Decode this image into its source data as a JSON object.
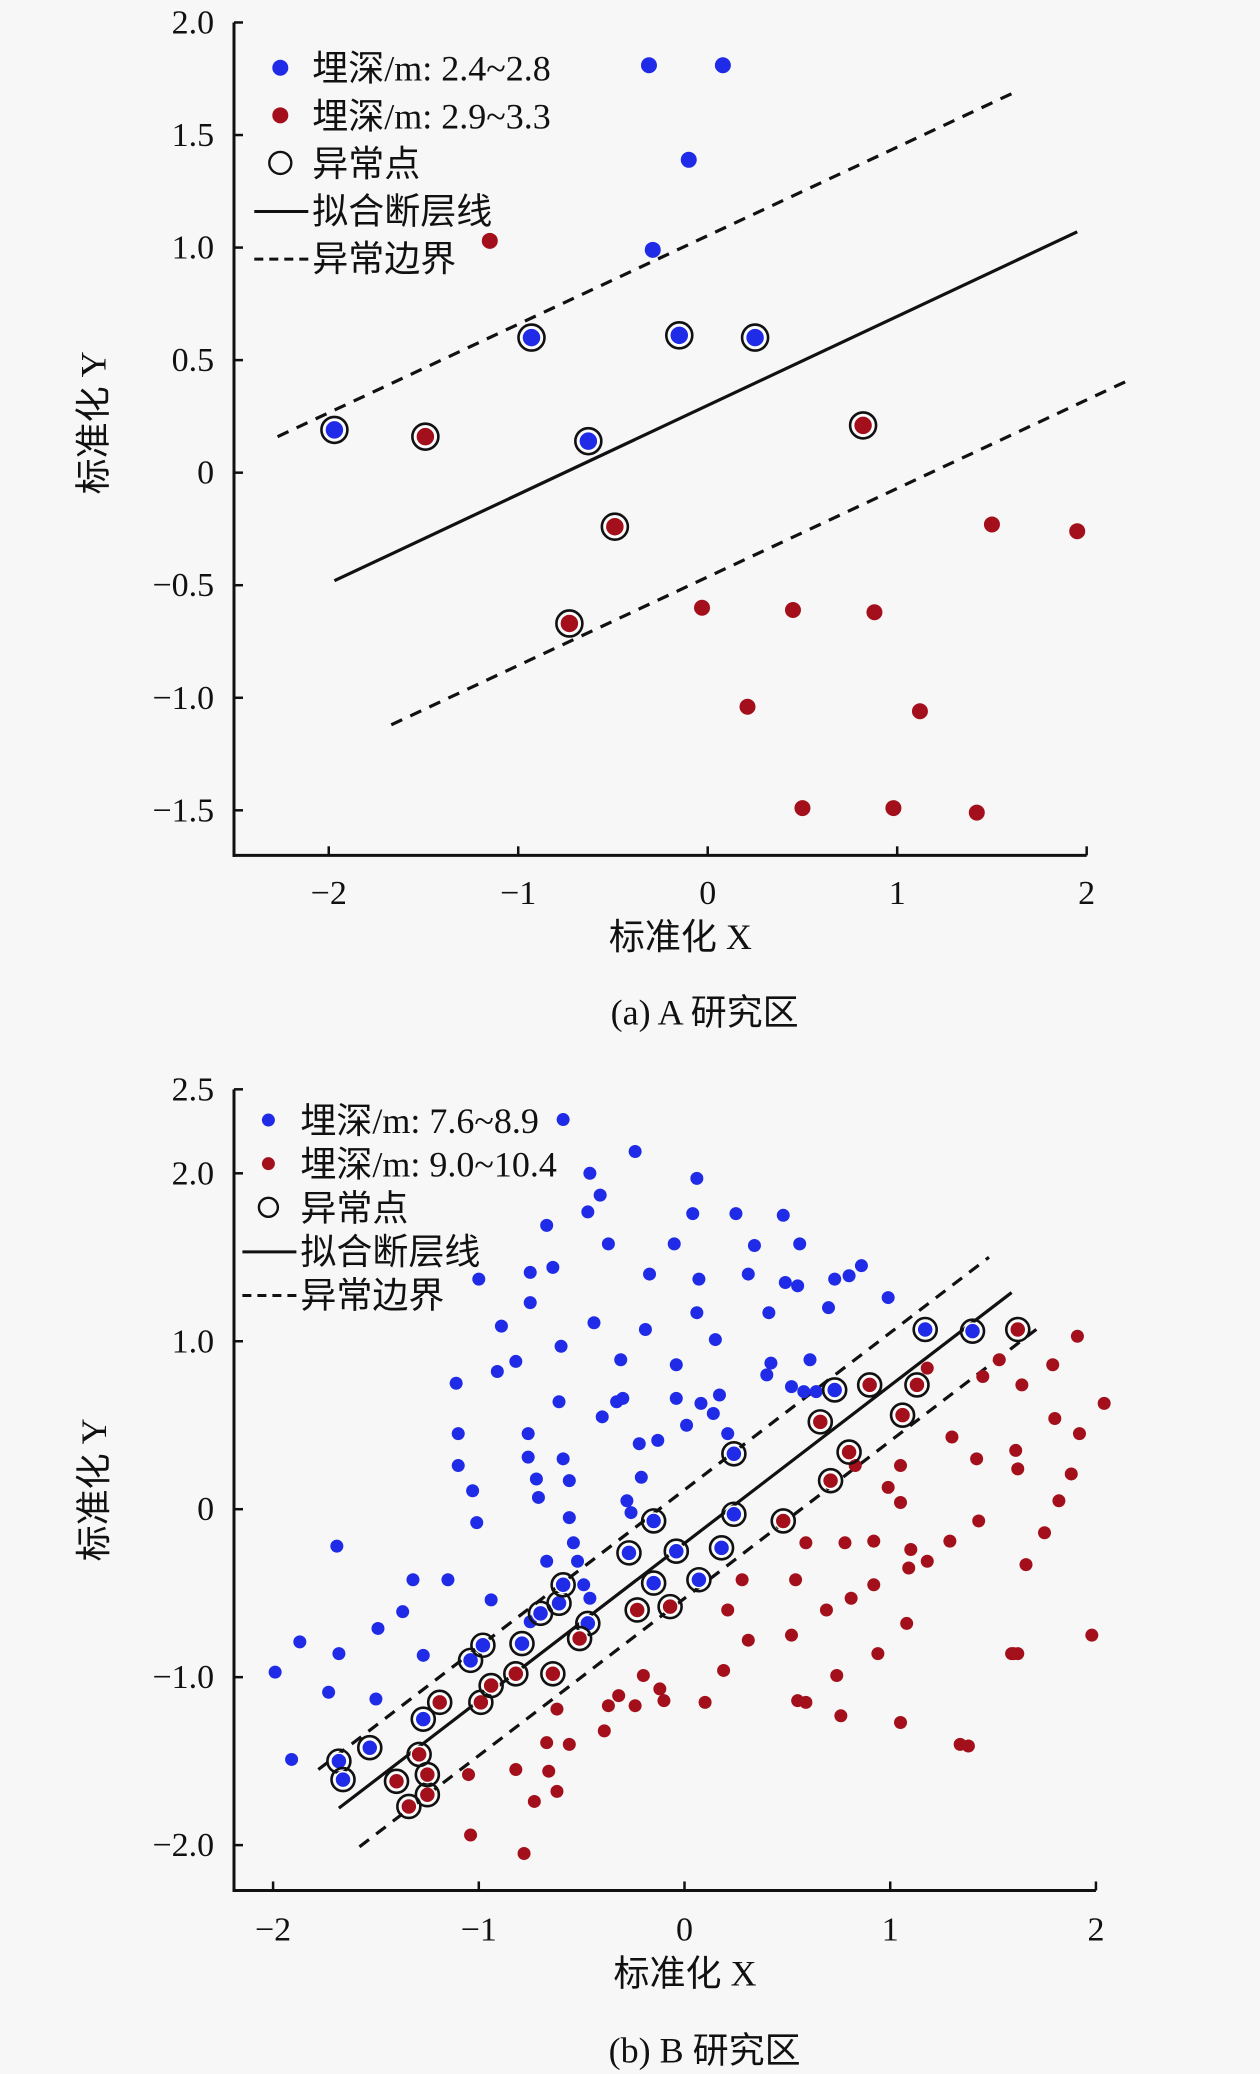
{
  "colors": {
    "blue": "#1f2be6",
    "red": "#a3101c",
    "line": "#111111",
    "background": "#f7f7f7"
  },
  "chart_data": [
    {
      "type": "scatter",
      "caption": "(a) A 研究区",
      "xlabel": "标准化 X",
      "ylabel": "标准化 Y",
      "xlim": [
        -2.5,
        2.0
      ],
      "ylim": [
        -1.7,
        2.0
      ],
      "xticks": [
        {
          "v": -2,
          "label": "−2"
        },
        {
          "v": -1,
          "label": "−1"
        },
        {
          "v": 0,
          "label": "0"
        },
        {
          "v": 1,
          "label": "1"
        },
        {
          "v": 2,
          "label": "2"
        }
      ],
      "yticks": [
        {
          "v": 2.0,
          "label": "2.0"
        },
        {
          "v": 1.5,
          "label": "1.5"
        },
        {
          "v": 1.0,
          "label": "1.0"
        },
        {
          "v": 0.5,
          "label": "0.5"
        },
        {
          "v": 0,
          "label": "0"
        },
        {
          "v": -0.5,
          "label": "−0.5"
        },
        {
          "v": -1.0,
          "label": "−1.0"
        },
        {
          "v": -1.5,
          "label": "−1.5"
        }
      ],
      "legend": {
        "position": "top-left",
        "entries": [
          "埋深/m: 2.4~2.8",
          "埋深/m: 2.9~3.3",
          "异常点",
          "拟合断层线",
          "异常边界"
        ]
      },
      "series": [
        {
          "name": "埋深/m: 2.4~2.8",
          "color": "blue",
          "points": [
            [
              -0.31,
              1.81
            ],
            [
              0.08,
              1.81
            ],
            [
              -0.1,
              1.39
            ],
            [
              -0.29,
              0.99
            ]
          ],
          "anomalies": [
            [
              -1.97,
              0.19
            ],
            [
              -0.93,
              0.6
            ],
            [
              -0.63,
              0.14
            ],
            [
              -0.15,
              0.61
            ],
            [
              0.25,
              0.6
            ]
          ]
        },
        {
          "name": "埋深/m: 2.9~3.3",
          "color": "red",
          "points": [
            [
              -1.15,
              1.03
            ],
            [
              1.5,
              -0.23
            ],
            [
              1.95,
              -0.26
            ],
            [
              -0.03,
              -0.6
            ],
            [
              0.45,
              -0.61
            ],
            [
              0.88,
              -0.62
            ],
            [
              0.21,
              -1.04
            ],
            [
              1.12,
              -1.06
            ],
            [
              0.5,
              -1.49
            ],
            [
              0.98,
              -1.49
            ],
            [
              1.42,
              -1.51
            ]
          ],
          "anomalies": [
            [
              -1.49,
              0.16
            ],
            [
              -0.49,
              -0.24
            ],
            [
              -0.73,
              -0.67
            ],
            [
              0.82,
              0.21
            ]
          ]
        }
      ],
      "fit_line": [
        [
          -1.97,
          -0.48
        ],
        [
          1.95,
          1.07
        ]
      ],
      "boundary_upper": [
        [
          -2.27,
          0.16
        ],
        [
          1.62,
          1.69
        ]
      ],
      "boundary_lower": [
        [
          -1.67,
          -1.12
        ],
        [
          2.22,
          0.41
        ]
      ]
    },
    {
      "type": "scatter",
      "caption": "(b) B 研究区",
      "xlabel": "标准化 X",
      "ylabel": "标准化 Y",
      "xlim": [
        -2.19,
        2.0
      ],
      "ylim": [
        -2.27,
        2.5
      ],
      "xticks": [
        {
          "v": -2,
          "label": "−2"
        },
        {
          "v": -1,
          "label": "−1"
        },
        {
          "v": 0,
          "label": "0"
        },
        {
          "v": 1,
          "label": "1"
        },
        {
          "v": 2,
          "label": "2"
        }
      ],
      "yticks": [
        {
          "v": 2.5,
          "label": "2.5"
        },
        {
          "v": 2.0,
          "label": "2.0"
        },
        {
          "v": 1.0,
          "label": "1.0"
        },
        {
          "v": 0,
          "label": "0"
        },
        {
          "v": -1.0,
          "label": "−1.0"
        },
        {
          "v": -2.0,
          "label": "−2.0"
        }
      ],
      "legend": {
        "position": "top-left",
        "entries": [
          "埋深/m: 7.6~8.9",
          "埋深/m: 9.0~10.4",
          "异常点",
          "拟合断层线",
          "异常边界"
        ]
      },
      "series": [
        {
          "name": "埋深/m: 7.6~8.9",
          "color": "blue",
          "points": [
            [
              -0.59,
              2.32
            ],
            [
              -0.24,
              2.13
            ],
            [
              -0.46,
              2.0
            ],
            [
              0.06,
              1.97
            ],
            [
              -0.67,
              1.69
            ],
            [
              -0.47,
              1.77
            ],
            [
              -1.69,
              -0.22
            ],
            [
              -1.99,
              -0.97
            ],
            [
              -1.91,
              -1.49
            ],
            [
              -1.87,
              -0.79
            ],
            [
              -1.73,
              -1.09
            ],
            [
              -1.68,
              -0.86
            ],
            [
              -1.49,
              -0.71
            ],
            [
              -1.5,
              -1.13
            ],
            [
              -1.37,
              -0.61
            ],
            [
              -1.32,
              -0.42
            ],
            [
              -1.27,
              -0.87
            ],
            [
              -1.15,
              -0.42
            ],
            [
              -1.11,
              0.75
            ],
            [
              -1.1,
              0.45
            ],
            [
              -1.1,
              0.26
            ],
            [
              -1.03,
              0.11
            ],
            [
              -1.01,
              -0.08
            ],
            [
              -0.94,
              -0.54
            ],
            [
              -1.0,
              1.37
            ],
            [
              -0.91,
              0.82
            ],
            [
              -0.89,
              1.09
            ],
            [
              -0.82,
              0.88
            ],
            [
              -0.76,
              0.45
            ],
            [
              -0.75,
              -0.67
            ],
            [
              -0.76,
              0.31
            ],
            [
              -0.72,
              0.18
            ],
            [
              -0.71,
              0.07
            ],
            [
              -0.75,
              1.41
            ],
            [
              -0.75,
              1.23
            ],
            [
              -0.64,
              1.44
            ],
            [
              -0.61,
              0.64
            ],
            [
              -0.6,
              0.97
            ],
            [
              -0.67,
              -0.31
            ],
            [
              -0.59,
              0.3
            ],
            [
              -0.56,
              0.17
            ],
            [
              -0.56,
              -0.05
            ],
            [
              -0.54,
              -0.2
            ],
            [
              -0.52,
              -0.31
            ],
            [
              -0.49,
              -0.45
            ],
            [
              -0.46,
              -0.53
            ],
            [
              -0.44,
              1.11
            ],
            [
              -0.4,
              0.55
            ],
            [
              -0.37,
              1.58
            ],
            [
              -0.33,
              0.64
            ],
            [
              -0.31,
              0.89
            ],
            [
              -0.3,
              0.66
            ],
            [
              -0.26,
              -0.02
            ],
            [
              -0.22,
              0.39
            ],
            [
              -0.21,
              0.19
            ],
            [
              -0.19,
              1.07
            ],
            [
              -0.17,
              1.4
            ],
            [
              -0.13,
              0.41
            ],
            [
              -0.05,
              1.58
            ],
            [
              -0.04,
              0.86
            ],
            [
              -0.04,
              0.66
            ],
            [
              0.01,
              0.5
            ],
            [
              0.04,
              1.76
            ],
            [
              0.06,
              1.17
            ],
            [
              0.07,
              1.37
            ],
            [
              0.08,
              0.63
            ],
            [
              0.15,
              1.01
            ],
            [
              0.17,
              0.68
            ],
            [
              0.25,
              1.76
            ],
            [
              0.31,
              1.4
            ],
            [
              0.34,
              1.57
            ],
            [
              0.4,
              0.8
            ],
            [
              0.41,
              1.17
            ],
            [
              0.42,
              0.87
            ],
            [
              0.48,
              1.75
            ],
            [
              0.49,
              1.35
            ],
            [
              0.55,
              1.33
            ],
            [
              0.56,
              1.58
            ],
            [
              0.61,
              0.89
            ],
            [
              0.64,
              0.7
            ],
            [
              0.7,
              1.2
            ],
            [
              0.73,
              1.37
            ],
            [
              0.8,
              1.39
            ],
            [
              0.86,
              1.45
            ],
            [
              0.99,
              1.26
            ],
            [
              0.58,
              0.7
            ],
            [
              0.14,
              0.57
            ],
            [
              -0.41,
              1.87
            ],
            [
              -0.28,
              0.05
            ],
            [
              0.21,
              0.45
            ],
            [
              0.52,
              0.73
            ]
          ],
          "anomalies": [
            [
              -1.68,
              -1.5
            ],
            [
              -1.66,
              -1.61
            ],
            [
              -1.53,
              -1.42
            ],
            [
              -1.27,
              -1.25
            ],
            [
              -1.04,
              -0.9
            ],
            [
              -0.98,
              -0.81
            ],
            [
              -0.79,
              -0.8
            ],
            [
              -0.7,
              -0.62
            ],
            [
              -0.61,
              -0.56
            ],
            [
              -0.59,
              -0.45
            ],
            [
              -0.47,
              -0.68
            ],
            [
              -0.27,
              -0.26
            ],
            [
              -0.15,
              -0.07
            ],
            [
              -0.15,
              -0.44
            ],
            [
              -0.04,
              -0.25
            ],
            [
              0.07,
              -0.42
            ],
            [
              0.18,
              -0.23
            ],
            [
              0.24,
              -0.03
            ],
            [
              0.24,
              0.33
            ],
            [
              0.73,
              0.71
            ],
            [
              1.17,
              1.07
            ],
            [
              1.4,
              1.06
            ]
          ]
        },
        {
          "name": "埋深/m: 9.0~10.4",
          "color": "red",
          "points": [
            [
              -1.05,
              -1.58
            ],
            [
              -1.04,
              -1.94
            ],
            [
              -0.78,
              -2.05
            ],
            [
              -0.73,
              -1.74
            ],
            [
              -0.82,
              -1.55
            ],
            [
              -0.67,
              -1.39
            ],
            [
              -0.66,
              -1.56
            ],
            [
              -0.62,
              -1.68
            ],
            [
              -0.62,
              -1.19
            ],
            [
              -0.56,
              -1.4
            ],
            [
              -0.39,
              -1.32
            ],
            [
              -0.37,
              -1.17
            ],
            [
              -0.32,
              -1.11
            ],
            [
              -0.24,
              -1.17
            ],
            [
              -0.2,
              -0.99
            ],
            [
              -0.12,
              -1.07
            ],
            [
              -0.1,
              -1.14
            ],
            [
              0.1,
              -1.15
            ],
            [
              0.19,
              -0.96
            ],
            [
              0.21,
              -0.6
            ],
            [
              0.28,
              -0.42
            ],
            [
              0.31,
              -0.78
            ],
            [
              0.52,
              -0.75
            ],
            [
              0.54,
              -0.42
            ],
            [
              0.59,
              -0.2
            ],
            [
              0.69,
              -0.6
            ],
            [
              0.59,
              -1.15
            ],
            [
              0.55,
              -1.14
            ],
            [
              0.74,
              -0.99
            ],
            [
              0.76,
              -1.23
            ],
            [
              0.78,
              -0.2
            ],
            [
              0.81,
              -0.53
            ],
            [
              0.83,
              0.26
            ],
            [
              0.92,
              -0.19
            ],
            [
              0.92,
              -0.45
            ],
            [
              0.94,
              -0.86
            ],
            [
              0.99,
              0.13
            ],
            [
              1.05,
              0.04
            ],
            [
              1.08,
              -0.68
            ],
            [
              1.09,
              -0.35
            ],
            [
              1.05,
              -1.27
            ],
            [
              1.1,
              -0.24
            ],
            [
              1.18,
              -0.31
            ],
            [
              1.29,
              -0.19
            ],
            [
              1.3,
              0.43
            ],
            [
              1.34,
              -1.4
            ],
            [
              1.42,
              0.3
            ],
            [
              1.45,
              0.79
            ],
            [
              1.43,
              -0.07
            ],
            [
              1.53,
              0.89
            ],
            [
              1.59,
              -0.86
            ],
            [
              1.62,
              0.24
            ],
            [
              1.61,
              0.35
            ],
            [
              1.64,
              0.74
            ],
            [
              1.66,
              -0.33
            ],
            [
              1.75,
              -0.14
            ],
            [
              1.79,
              0.86
            ],
            [
              1.8,
              0.54
            ],
            [
              1.82,
              0.05
            ],
            [
              1.88,
              0.21
            ],
            [
              1.91,
              1.03
            ],
            [
              1.92,
              0.45
            ],
            [
              1.98,
              -0.75
            ],
            [
              2.04,
              0.63
            ],
            [
              1.05,
              0.26
            ],
            [
              1.18,
              0.84
            ],
            [
              1.38,
              -1.41
            ],
            [
              1.6,
              -0.86
            ],
            [
              1.62,
              -0.86
            ]
          ],
          "anomalies": [
            [
              -1.4,
              -1.62
            ],
            [
              -1.34,
              -1.77
            ],
            [
              -1.25,
              -1.7
            ],
            [
              -1.25,
              -1.58
            ],
            [
              -1.29,
              -1.46
            ],
            [
              -1.19,
              -1.15
            ],
            [
              -0.99,
              -1.15
            ],
            [
              -0.94,
              -1.05
            ],
            [
              -0.82,
              -0.98
            ],
            [
              -0.64,
              -0.98
            ],
            [
              -0.51,
              -0.77
            ],
            [
              -0.23,
              -0.6
            ],
            [
              -0.07,
              -0.58
            ],
            [
              0.48,
              -0.07
            ],
            [
              0.66,
              0.52
            ],
            [
              0.71,
              0.17
            ],
            [
              0.8,
              0.34
            ],
            [
              0.9,
              0.74
            ],
            [
              1.06,
              0.56
            ],
            [
              1.13,
              0.74
            ],
            [
              1.62,
              1.07
            ]
          ]
        }
      ],
      "fit_line": [
        [
          -1.68,
          -1.78
        ],
        [
          1.59,
          1.29
        ]
      ],
      "boundary_upper": [
        [
          -1.78,
          -1.55
        ],
        [
          1.48,
          1.5
        ]
      ],
      "boundary_lower": [
        [
          -1.58,
          -2.01
        ],
        [
          1.72,
          1.08
        ]
      ]
    }
  ]
}
